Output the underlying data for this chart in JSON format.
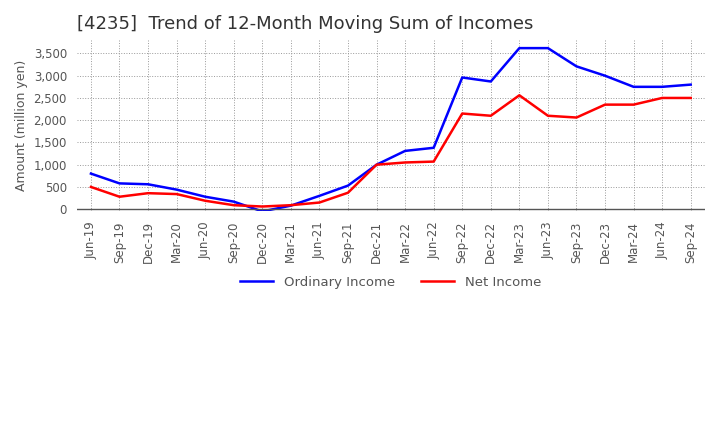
{
  "title": "[4235]  Trend of 12-Month Moving Sum of Incomes",
  "ylabel": "Amount (million yen)",
  "ylim": [
    -50,
    3800
  ],
  "yticks": [
    0,
    500,
    1000,
    1500,
    2000,
    2500,
    3000,
    3500
  ],
  "legend_labels": [
    "Ordinary Income",
    "Net Income"
  ],
  "line_colors": [
    "#0000ff",
    "#ff0000"
  ],
  "x_labels": [
    "Jun-19",
    "Sep-19",
    "Dec-19",
    "Mar-20",
    "Jun-20",
    "Sep-20",
    "Dec-20",
    "Mar-21",
    "Jun-21",
    "Sep-21",
    "Dec-21",
    "Mar-22",
    "Jun-22",
    "Sep-22",
    "Dec-22",
    "Mar-23",
    "Jun-23",
    "Sep-23",
    "Dec-23",
    "Mar-24",
    "Jun-24",
    "Sep-24"
  ],
  "ordinary_income": [
    800,
    580,
    560,
    440,
    280,
    170,
    -50,
    80,
    300,
    530,
    1000,
    1310,
    1380,
    2960,
    2870,
    3620,
    3620,
    3210,
    3000,
    2750,
    2750,
    2800
  ],
  "net_income": [
    500,
    280,
    360,
    340,
    190,
    90,
    60,
    90,
    150,
    370,
    1000,
    1050,
    1070,
    2150,
    2100,
    2560,
    2100,
    2060,
    2350,
    2350,
    2500,
    2500
  ],
  "background_color": "#ffffff",
  "grid_color": "#999999",
  "title_fontsize": 13,
  "axis_fontsize": 9,
  "tick_fontsize": 8.5
}
